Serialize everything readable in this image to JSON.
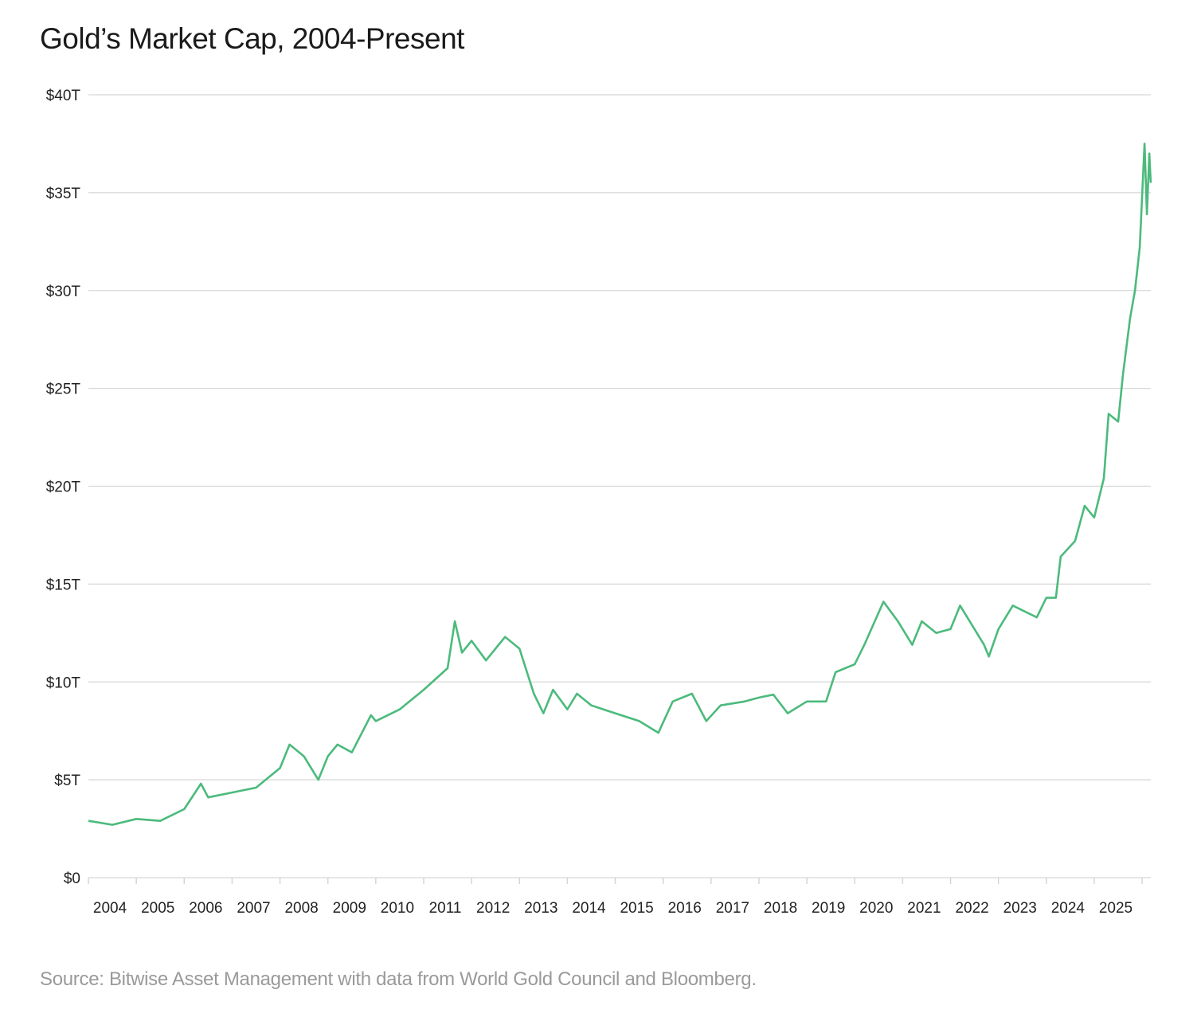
{
  "chart_data": {
    "type": "line",
    "title": "Gold’s Market Cap, 2004-Present",
    "source": "Source: Bitwise Asset Management with data from World Gold Council and Bloomberg.",
    "xlabel": "",
    "ylabel": "",
    "ylim": [
      0,
      40
    ],
    "xlim": [
      2004,
      2026.2
    ],
    "yticks": [
      0,
      5,
      10,
      15,
      20,
      25,
      30,
      35,
      40
    ],
    "ytick_labels": [
      "$0",
      "$5T",
      "$10T",
      "$15T",
      "$20T",
      "$25T",
      "$30T",
      "$35T",
      "$40T"
    ],
    "xtick_labels": [
      "2004",
      "2005",
      "2006",
      "2007",
      "2008",
      "2009",
      "2010",
      "2011",
      "2012",
      "2013",
      "2014",
      "2015",
      "2016",
      "2017",
      "2018",
      "2019",
      "2020",
      "2021",
      "2022",
      "2023",
      "2024",
      "2025"
    ],
    "grid": true,
    "line_color": "#4cba7c",
    "series": [
      {
        "x": [
          2004.0,
          2004.5,
          2005.0,
          2005.5,
          2006.0,
          2006.35,
          2006.5,
          2007.0,
          2007.5,
          2008.0,
          2008.2,
          2008.5,
          2008.8,
          2009.0,
          2009.2,
          2009.5,
          2009.9,
          2010.0,
          2010.5,
          2011.0,
          2011.5,
          2011.65,
          2011.8,
          2012.0,
          2012.3,
          2012.7,
          2013.0,
          2013.3,
          2013.5,
          2013.7,
          2014.0,
          2014.2,
          2014.5,
          2015.0,
          2015.5,
          2015.9,
          2016.2,
          2016.6,
          2016.9,
          2017.2,
          2017.7,
          2018.0,
          2018.3,
          2018.6,
          2019.0,
          2019.4,
          2019.6,
          2020.0,
          2020.2,
          2020.6,
          2020.9,
          2021.2,
          2021.4,
          2021.7,
          2022.0,
          2022.2,
          2022.7,
          2022.8,
          2023.0,
          2023.3,
          2023.8,
          2024.0,
          2024.2,
          2024.3,
          2024.6,
          2024.8,
          2025.0,
          2025.2,
          2025.3,
          2025.5,
          2025.6,
          2025.75,
          2025.85,
          2025.95,
          2026.05,
          2026.1,
          2026.15,
          2026.18
        ],
        "values": [
          2.9,
          2.7,
          3.0,
          2.9,
          3.5,
          4.8,
          4.1,
          4.35,
          4.6,
          5.6,
          6.8,
          6.2,
          5.0,
          6.2,
          6.8,
          6.4,
          8.3,
          8.0,
          8.6,
          9.6,
          10.7,
          13.1,
          11.5,
          12.1,
          11.1,
          12.3,
          11.7,
          9.4,
          8.4,
          9.6,
          8.6,
          9.4,
          8.8,
          8.4,
          8.0,
          7.4,
          9.0,
          9.4,
          8.0,
          8.8,
          9.0,
          9.2,
          9.35,
          8.4,
          9.0,
          9.0,
          10.5,
          10.9,
          11.9,
          14.1,
          13.1,
          11.9,
          13.1,
          12.5,
          12.7,
          13.9,
          11.9,
          11.3,
          12.7,
          13.9,
          13.3,
          14.3,
          14.3,
          16.4,
          17.2,
          19.0,
          18.4,
          20.4,
          23.7,
          23.3,
          25.7,
          28.6,
          30.0,
          32.2,
          37.5,
          33.9,
          37.0,
          35.5
        ]
      }
    ]
  }
}
